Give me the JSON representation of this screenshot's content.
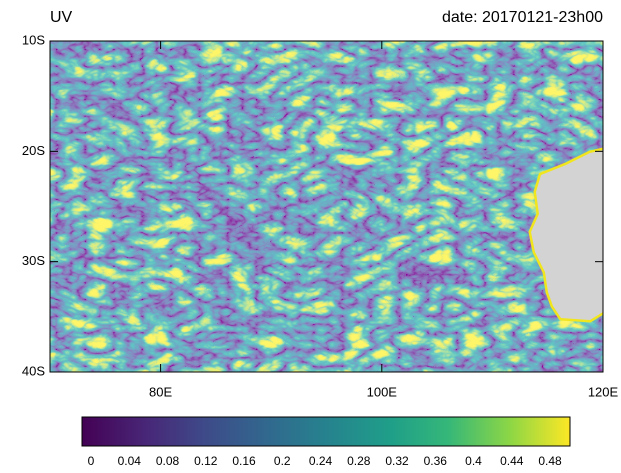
{
  "title": "UV",
  "date_label": "date: 20170121-23h00",
  "map": {
    "xlim": [
      70,
      120
    ],
    "ylim": [
      -40,
      -10
    ],
    "xticks": [
      {
        "value": 80,
        "label": "80E"
      },
      {
        "value": 100,
        "label": "100E"
      },
      {
        "value": 120,
        "label": "120E"
      }
    ],
    "yticks": [
      {
        "value": -10,
        "label": "10S"
      },
      {
        "value": -20,
        "label": "20S"
      },
      {
        "value": -30,
        "label": "30S"
      },
      {
        "value": -40,
        "label": "40S"
      }
    ]
  },
  "colorbar": {
    "ticks": [
      0,
      0.04,
      0.08,
      0.12,
      0.16,
      0.2,
      0.24,
      0.28,
      0.32,
      0.36,
      0.4,
      0.44,
      0.48
    ]
  }
}
